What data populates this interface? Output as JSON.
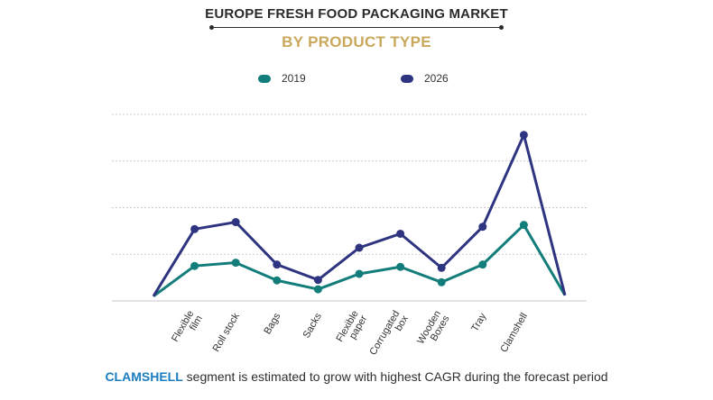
{
  "header": {
    "title": "EUROPE FRESH FOOD PACKAGING MARKET",
    "subtitle": "BY PRODUCT TYPE"
  },
  "legend": {
    "items": [
      {
        "label": "2019",
        "color": "#127d7a"
      },
      {
        "label": "2026",
        "color": "#2e3480"
      }
    ]
  },
  "caption": {
    "highlight": "CLAMSHELL",
    "text": " segment is estimated to grow with highest CAGR during the forecast period",
    "highlight_color": "#1a7dc0"
  },
  "colors": {
    "series_2019": "#127d7a",
    "series_2026": "#2e3480",
    "grid": "#c8c8c8"
  },
  "chart_data": {
    "type": "line",
    "title": "",
    "xlabel": "",
    "ylabel": "",
    "y_tick_labels_shown": false,
    "grid": "horizontal dashed",
    "legend_position": "top",
    "ylim": [
      0,
      4
    ],
    "categories": [
      "",
      "Flexible film",
      "Roll stock",
      "Bags",
      "Sacks",
      "Flexible paper",
      "Corrugated box",
      "Wooden Boxes",
      "Tray",
      "Clamshell",
      ""
    ],
    "series": [
      {
        "name": "2019",
        "values": [
          0.1,
          0.75,
          0.82,
          0.44,
          0.25,
          0.58,
          0.73,
          0.4,
          0.78,
          1.63,
          0.12
        ]
      },
      {
        "name": "2026",
        "values": [
          0.1,
          1.54,
          1.69,
          0.78,
          0.45,
          1.14,
          1.44,
          0.71,
          1.59,
          3.56,
          0.12
        ]
      }
    ]
  }
}
